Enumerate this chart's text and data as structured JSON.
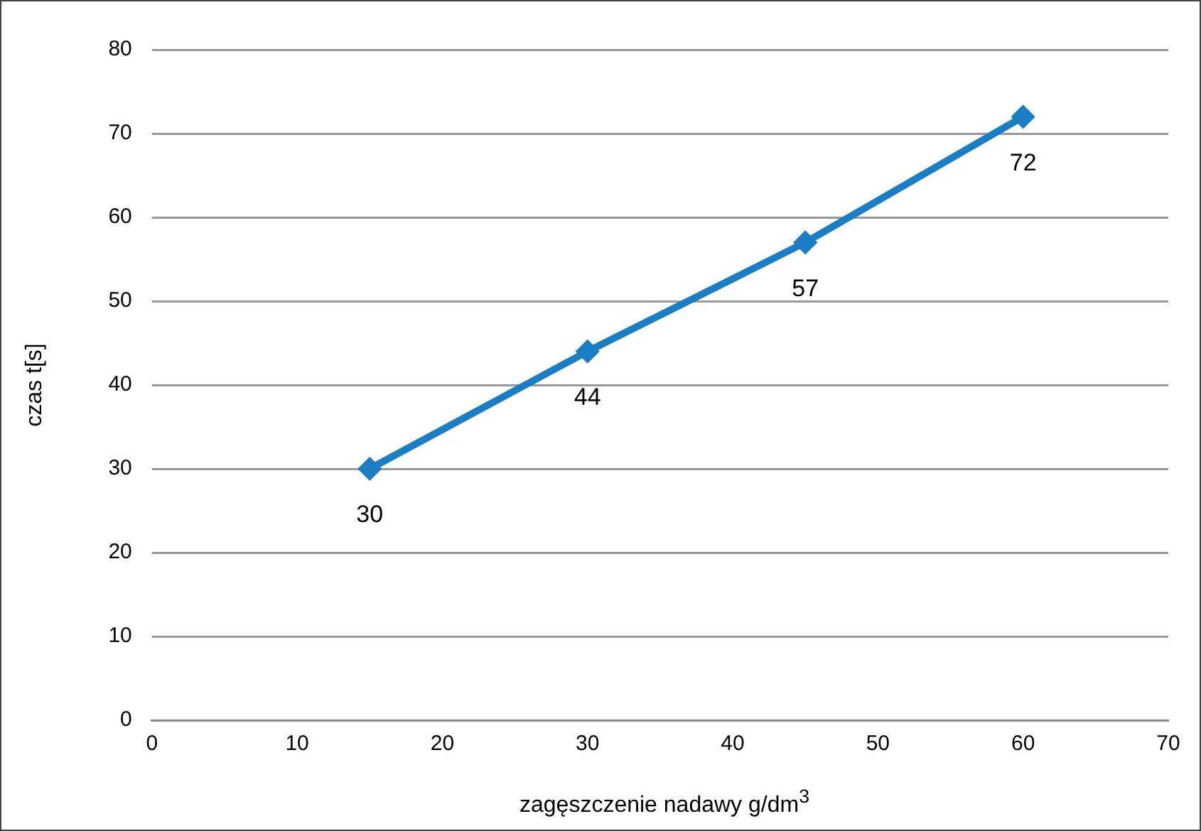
{
  "chart_data": {
    "type": "line",
    "xlabel": "zagęszczenie nadawy g/dm$^{3}$",
    "ylabel": "czas t[s]",
    "x": [
      15,
      30,
      45,
      60
    ],
    "series": [
      {
        "color": "#1a7ec4",
        "values": [
          30,
          44,
          57,
          72
        ]
      }
    ],
    "xlim": [
      0,
      70
    ],
    "xticks": [
      0,
      10,
      20,
      30,
      40,
      50,
      60,
      70
    ],
    "ylim": [
      0,
      80
    ],
    "yticks": [
      0,
      10,
      20,
      30,
      40,
      50,
      60,
      70,
      80
    ],
    "grid": "y",
    "legend": false,
    "marker": "diamond",
    "line_style": "solid",
    "data_labels": true
  }
}
